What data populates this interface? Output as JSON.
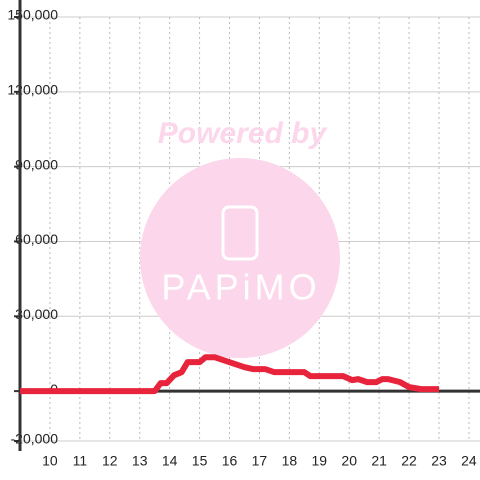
{
  "chart_data": {
    "type": "line",
    "watermark": {
      "title": "Powered by",
      "brand": "PAPiMO"
    },
    "x": [
      9,
      13.5,
      13.7,
      13.9,
      14.15,
      14.4,
      14.6,
      15.0,
      15.2,
      15.5,
      15.8,
      16.2,
      16.5,
      16.8,
      17.2,
      17.5,
      18.5,
      18.7,
      19.8,
      20.1,
      20.3,
      20.6,
      20.9,
      21.1,
      21.3,
      21.7,
      22.0,
      22.4,
      23.0
    ],
    "series": [
      {
        "color": "#e8243c",
        "values": [
          0,
          0,
          3200,
          3200,
          6400,
          7600,
          11600,
          11600,
          13600,
          13600,
          12400,
          10800,
          9600,
          8800,
          8800,
          7600,
          7600,
          6000,
          6000,
          4400,
          4800,
          3600,
          3600,
          4800,
          4800,
          3600,
          1600,
          800,
          800
        ]
      }
    ],
    "xlim": [
      9,
      24.37
    ],
    "ylim": [
      -20000,
      150000
    ],
    "xticks": [
      10,
      11,
      12,
      13,
      14,
      15,
      16,
      17,
      18,
      19,
      20,
      21,
      22,
      23,
      24
    ],
    "yticks": [
      {
        "value": -20000,
        "label": "-20,000"
      },
      0,
      {
        "value": 30000,
        "label": "30,000"
      },
      {
        "value": 60000,
        "label": "60,000"
      },
      {
        "value": 90000,
        "label": "90,000"
      },
      {
        "value": 120000,
        "label": "120,000"
      },
      {
        "value": 150000,
        "label": "150,000"
      }
    ],
    "grid": true
  }
}
